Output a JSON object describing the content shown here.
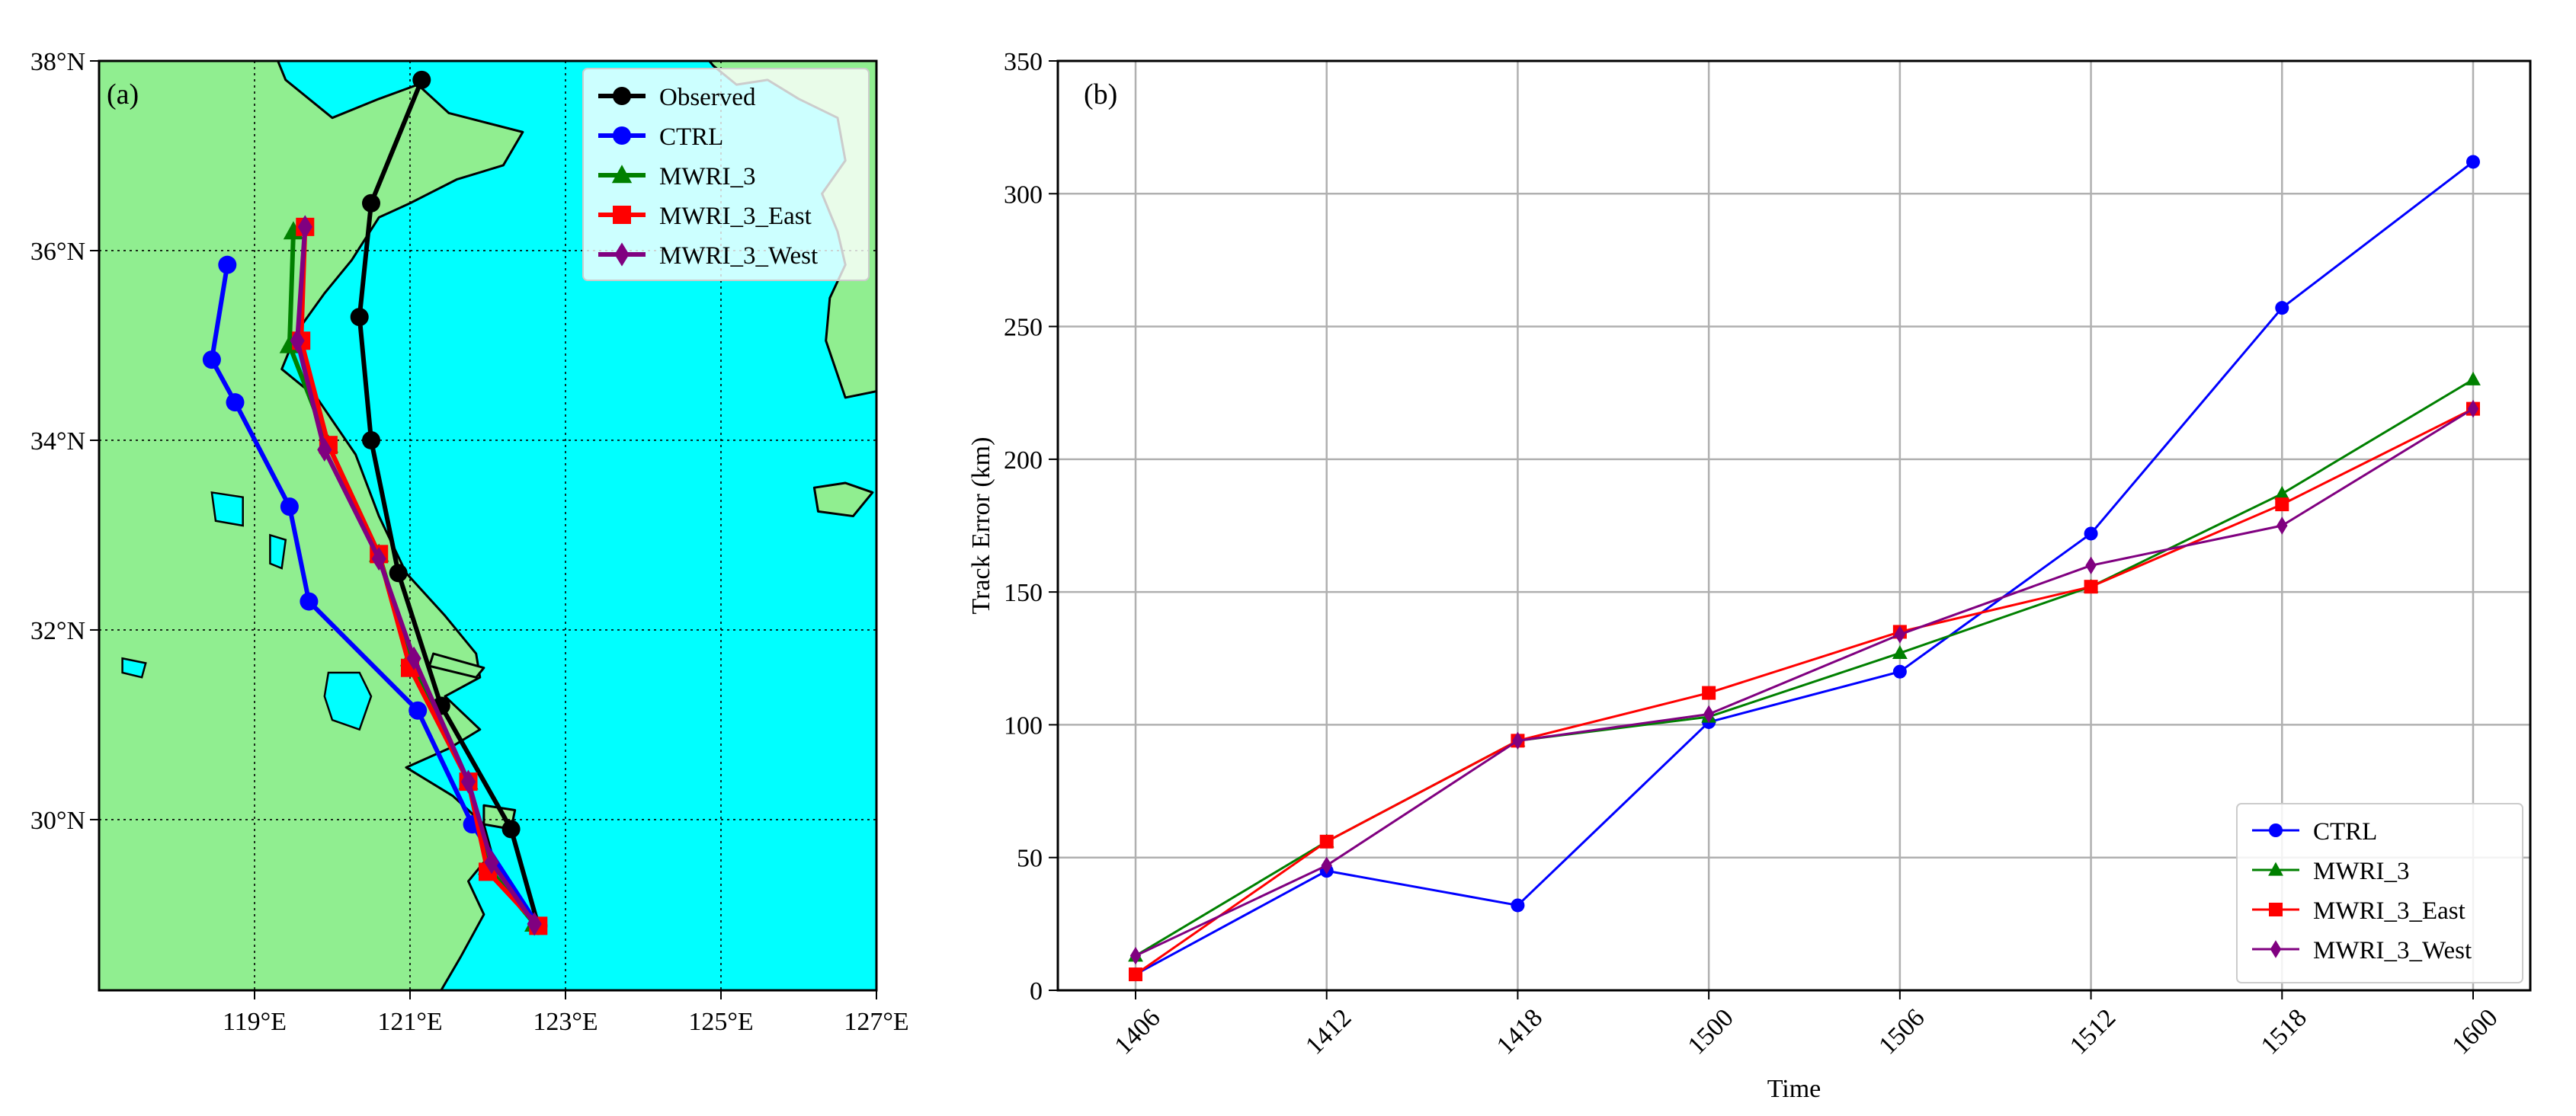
{
  "chart_data": [
    {
      "panel_label": "(a)",
      "type": "line",
      "subtype": "typhoon-track-map",
      "background_colors": {
        "sea": "#00ffff",
        "land": "#90ee90",
        "coastline": "#000000"
      },
      "xlim": [
        117,
        127
      ],
      "ylim": [
        28.2,
        38
      ],
      "x_ticks": [
        119,
        121,
        123,
        125,
        127
      ],
      "x_tick_labels": [
        "119°E",
        "121°E",
        "123°E",
        "125°E",
        "127°E"
      ],
      "y_ticks": [
        30,
        32,
        34,
        36,
        38
      ],
      "y_tick_labels": [
        "30°N",
        "32°N",
        "34°N",
        "36°N",
        "38°N"
      ],
      "grid": "dotted",
      "legend_position": "top-right",
      "series": [
        {
          "name": "Observed",
          "color": "#000000",
          "marker": "circle",
          "lon": [
            122.65,
            122.3,
            121.4,
            120.85,
            120.5,
            120.35,
            120.5,
            121.15
          ],
          "lat": [
            28.88,
            29.9,
            31.2,
            32.6,
            34.0,
            35.3,
            36.5,
            37.8
          ]
        },
        {
          "name": "CTRL",
          "color": "#0000ff",
          "marker": "circle",
          "lon": [
            122.65,
            121.8,
            121.1,
            119.7,
            119.45,
            118.75,
            118.45,
            118.65
          ],
          "lat": [
            28.88,
            29.95,
            31.15,
            32.3,
            33.3,
            34.4,
            34.85,
            35.85
          ]
        },
        {
          "name": "MWRI_3",
          "color": "#008000",
          "marker": "triangle",
          "lon": [
            122.6,
            122.0,
            121.75,
            121.0,
            120.6,
            119.95,
            119.45,
            119.5
          ],
          "lat": [
            28.9,
            29.5,
            30.4,
            31.7,
            32.8,
            33.95,
            35.0,
            36.2
          ]
        },
        {
          "name": "MWRI_3_East",
          "color": "#ff0000",
          "marker": "square",
          "lon": [
            122.65,
            122.0,
            121.75,
            121.0,
            120.6,
            119.95,
            119.6,
            119.65
          ],
          "lat": [
            28.88,
            29.45,
            30.4,
            31.6,
            32.8,
            33.95,
            35.05,
            36.25
          ]
        },
        {
          "name": "MWRI_3_West",
          "color": "#800080",
          "marker": "diamond",
          "lon": [
            122.6,
            122.05,
            121.75,
            121.05,
            120.6,
            119.9,
            119.55,
            119.65
          ],
          "lat": [
            28.9,
            29.55,
            30.4,
            31.7,
            32.75,
            33.9,
            35.05,
            36.25
          ]
        }
      ]
    },
    {
      "panel_label": "(b)",
      "type": "line",
      "xlabel": "Time",
      "ylabel": "Track Error (km)",
      "categories": [
        "1406",
        "1412",
        "1418",
        "1500",
        "1506",
        "1512",
        "1518",
        "1600"
      ],
      "ylim": [
        0,
        350
      ],
      "y_ticks": [
        0,
        50,
        100,
        150,
        200,
        250,
        300,
        350
      ],
      "grid": true,
      "legend_position": "bottom-right",
      "series": [
        {
          "name": "CTRL",
          "color": "#0000ff",
          "marker": "circle",
          "values": [
            6,
            45,
            32,
            101,
            120,
            172,
            257,
            312
          ]
        },
        {
          "name": "MWRI_3",
          "color": "#008000",
          "marker": "triangle",
          "values": [
            13,
            56,
            94,
            103,
            127,
            152,
            187,
            230
          ]
        },
        {
          "name": "MWRI_3_East",
          "color": "#ff0000",
          "marker": "square",
          "values": [
            6,
            56,
            94,
            112,
            135,
            152,
            183,
            219
          ]
        },
        {
          "name": "MWRI_3_West",
          "color": "#800080",
          "marker": "diamond",
          "values": [
            13,
            47,
            94,
            104,
            134,
            160,
            175,
            219
          ]
        }
      ]
    }
  ]
}
